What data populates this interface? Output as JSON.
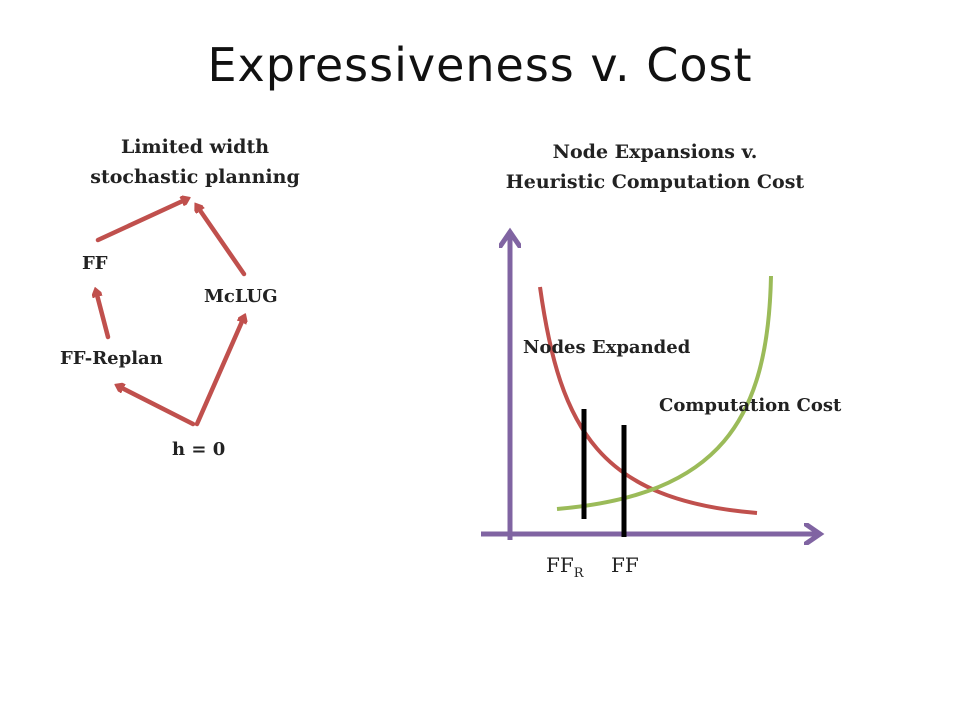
{
  "title": "Expressiveness v. Cost",
  "left_diagram": {
    "heading": [
      "Limited width",
      "stochastic planning"
    ],
    "nodes": {
      "ff": "FF",
      "mclug": "McLUG",
      "ff_replan": "FF-Replan",
      "h0": "h = 0"
    },
    "edge_color": "#c0504d"
  },
  "right_diagram": {
    "heading": [
      "Node Expansions v.",
      "Heuristic Computation Cost"
    ],
    "series": {
      "nodes_expanded": {
        "label": "Nodes Expanded",
        "color": "#c0504d"
      },
      "computation_cost": {
        "label": "Computation Cost",
        "color": "#9bbb59"
      }
    },
    "axis_color": "#8064a2",
    "markers": {
      "ffr_base": "FF",
      "ffr_sub": "R",
      "ff": "FF"
    }
  }
}
